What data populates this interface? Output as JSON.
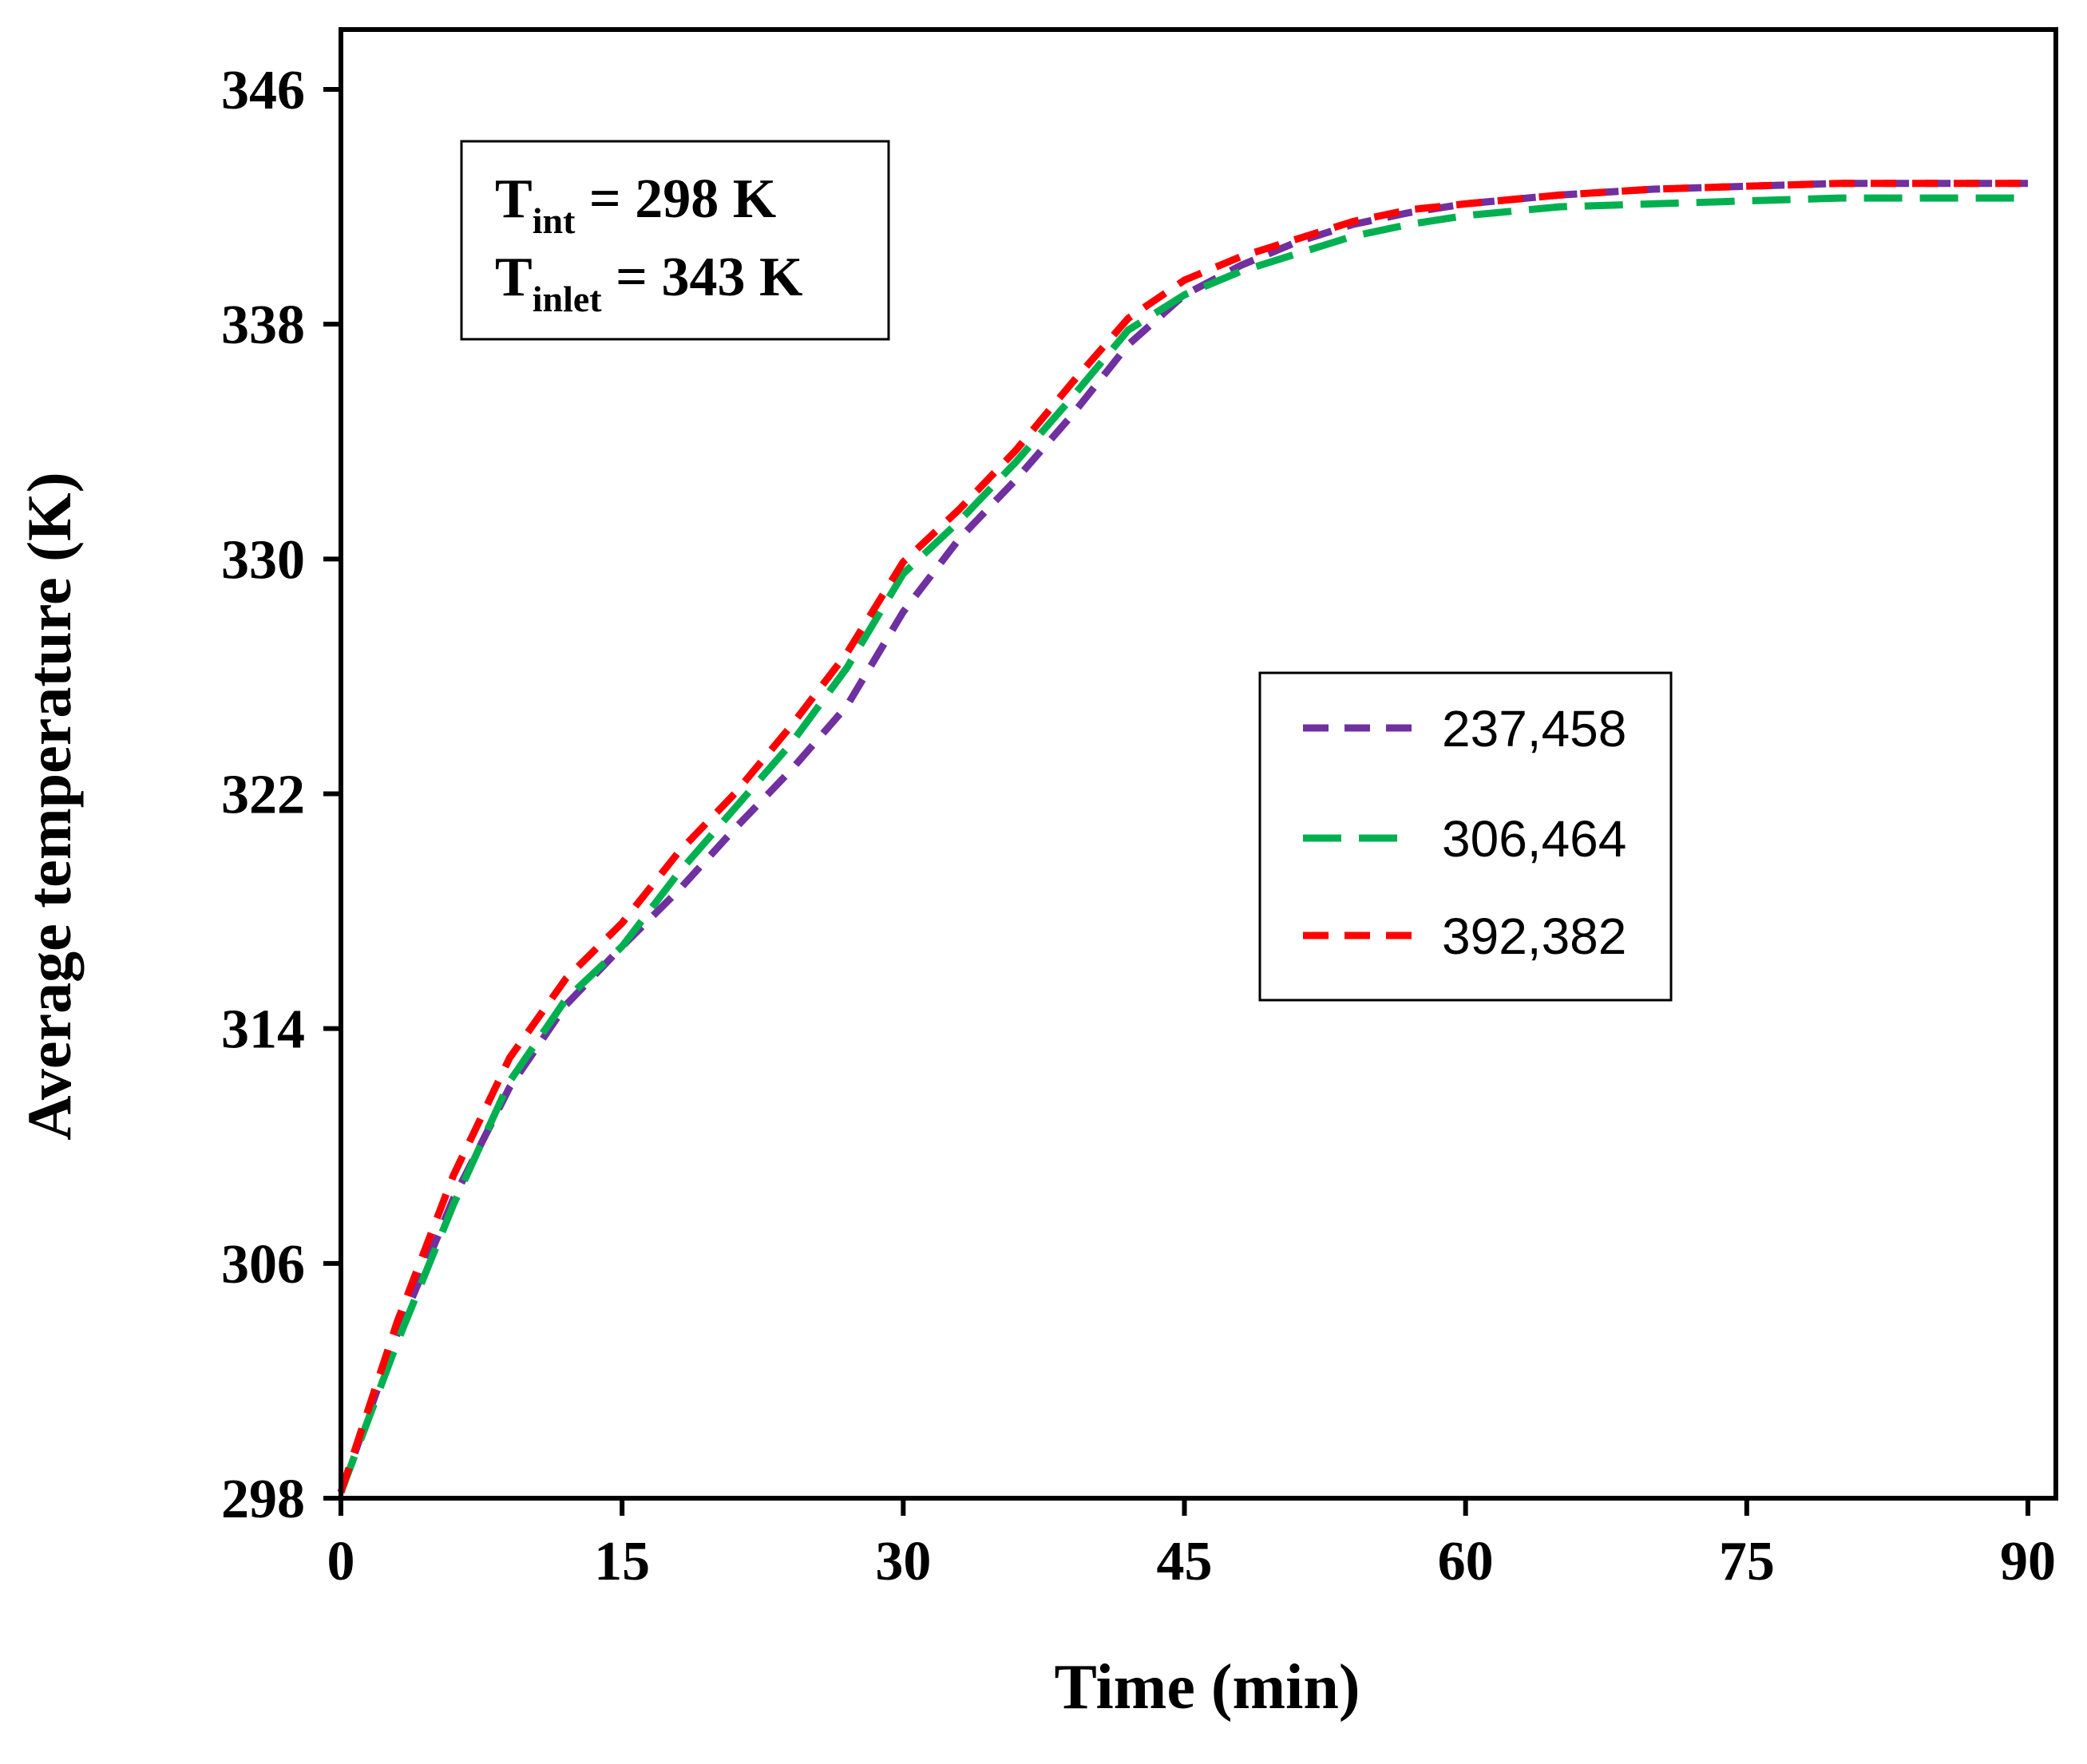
{
  "chart_data": {
    "type": "line",
    "title": "",
    "xlabel": "Time (min)",
    "ylabel": "Average temperature (K)",
    "xlim": [
      0,
      90
    ],
    "ylim": [
      298,
      346
    ],
    "xticks": [
      "0",
      "15",
      "30",
      "45",
      "60",
      "75",
      "90"
    ],
    "yticks": [
      "298",
      "306",
      "314",
      "322",
      "330",
      "338",
      "346"
    ],
    "grid": false,
    "legend_position": "center-right",
    "annotation": {
      "line1": {
        "symbol": "T",
        "subscript": "int",
        "rest": " = 298 K"
      },
      "line2": {
        "symbol": "T",
        "subscript": "inlet",
        "rest": " = 343 K"
      }
    },
    "x": [
      0,
      3,
      6,
      9,
      12,
      15,
      18,
      21,
      24,
      27,
      30,
      33,
      36,
      39,
      42,
      45,
      48,
      51,
      54,
      57,
      60,
      65,
      70,
      75,
      80,
      85,
      90
    ],
    "series": [
      {
        "name": "237,458",
        "color": "#7030a0",
        "dash": "short",
        "values": [
          298.2,
          303.6,
          308.2,
          312.0,
          314.8,
          316.8,
          318.7,
          320.8,
          322.8,
          325.0,
          328.2,
          330.7,
          332.7,
          334.9,
          337.3,
          339.0,
          340.0,
          340.8,
          341.4,
          341.8,
          342.1,
          342.4,
          342.6,
          342.7,
          342.8,
          342.8,
          342.8
        ]
      },
      {
        "name": "306,464",
        "color": "#00b050",
        "dash": "long",
        "values": [
          298.2,
          303.3,
          308.0,
          312.2,
          315.0,
          316.8,
          319.3,
          321.5,
          323.7,
          326.3,
          329.5,
          331.3,
          333.3,
          335.5,
          337.8,
          339.0,
          339.8,
          340.4,
          341.0,
          341.4,
          341.7,
          342.0,
          342.1,
          342.2,
          342.3,
          342.3,
          342.3
        ]
      },
      {
        "name": "392,382",
        "color": "#ff0000",
        "dash": "short",
        "values": [
          298.2,
          304.0,
          309.0,
          313.0,
          315.7,
          317.6,
          320.0,
          322.0,
          324.3,
          326.8,
          329.9,
          331.7,
          333.7,
          336.0,
          338.2,
          339.5,
          340.3,
          340.9,
          341.5,
          341.9,
          342.1,
          342.4,
          342.6,
          342.7,
          342.8,
          342.8,
          342.8
        ]
      }
    ]
  }
}
